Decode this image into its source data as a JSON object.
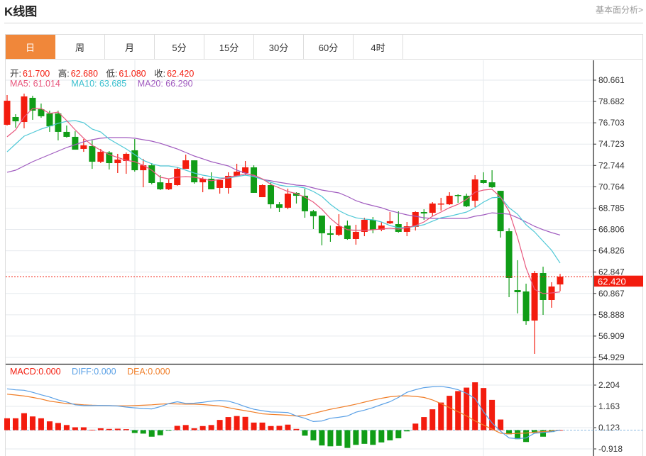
{
  "header": {
    "title": "K线图",
    "link": "基本面分析>"
  },
  "tabs": [
    {
      "label": "日",
      "active": true
    },
    {
      "label": "周",
      "active": false
    },
    {
      "label": "月",
      "active": false
    },
    {
      "label": "5分",
      "active": false
    },
    {
      "label": "15分",
      "active": false
    },
    {
      "label": "30分",
      "active": false
    },
    {
      "label": "60分",
      "active": false
    },
    {
      "label": "4时",
      "active": false
    }
  ],
  "ohlc_legend": {
    "open_label": "开:",
    "open": "61.700",
    "high_label": "高:",
    "high": "62.680",
    "low_label": "低:",
    "low": "61.080",
    "close_label": "收:",
    "close": "62.420"
  },
  "ma_legend": {
    "ma5": "MA5: 61.014",
    "ma10": "MA10: 63.685",
    "ma20": "MA20: 66.290"
  },
  "macd_legend": {
    "macd": "MACD:0.000",
    "diff": "DIFF:0.000",
    "dea": "DEA:0.000"
  },
  "colors": {
    "up": "#f31c0e",
    "down": "#109d17",
    "ma5": "#e8577d",
    "ma10": "#4fc8d6",
    "ma20": "#a05bbf",
    "diff": "#5aa0e6",
    "dea": "#f07e28",
    "active_tab": "#f0873a"
  },
  "chart_data": [
    {
      "type": "candlestick",
      "price_ticks": [
        "80.661",
        "78.682",
        "76.703",
        "74.723",
        "72.744",
        "70.764",
        "68.785",
        "66.806",
        "64.826",
        "62.847",
        "60.867",
        "58.888",
        "56.909",
        "54.929"
      ],
      "ylim": [
        54.929,
        80.661
      ],
      "last_price": "62.420",
      "grid": true,
      "ohlc": [
        [
          76.52,
          79.28,
          76.45,
          78.75
        ],
        [
          77.24,
          77.5,
          76.25,
          76.84
        ],
        [
          76.78,
          79.41,
          76.19,
          79.15
        ],
        [
          79.02,
          79.21,
          76.98,
          77.83
        ],
        [
          77.96,
          78.49,
          77.17,
          77.31
        ],
        [
          77.57,
          77.83,
          75.86,
          76.38
        ],
        [
          77.57,
          77.83,
          75.07,
          75.86
        ],
        [
          75.86,
          76.45,
          75.33,
          75.4
        ],
        [
          75.4,
          75.92,
          74.21,
          74.21
        ],
        [
          74.28,
          75.2,
          74.01,
          74.61
        ],
        [
          74.54,
          75.07,
          72.43,
          73.09
        ],
        [
          73.09,
          74.28,
          72.96,
          74.01
        ],
        [
          73.95,
          74.08,
          72.37,
          72.96
        ],
        [
          72.96,
          73.82,
          72.04,
          73.29
        ],
        [
          73.16,
          73.95,
          71.97,
          73.82
        ],
        [
          74.15,
          75.2,
          72.17,
          72.3
        ],
        [
          72.3,
          73.36,
          70.72,
          72.76
        ],
        [
          72.76,
          72.96,
          70.99,
          71.12
        ],
        [
          71.18,
          71.84,
          70.46,
          70.53
        ],
        [
          70.53,
          71.45,
          70.46,
          71.12
        ],
        [
          70.92,
          72.57,
          70.86,
          72.43
        ],
        [
          72.43,
          73.75,
          72.43,
          73.22
        ],
        [
          73.22,
          73.22,
          71.05,
          71.18
        ],
        [
          71.18,
          71.65,
          70.26,
          71.51
        ],
        [
          71.51,
          72.11,
          70.53,
          70.53
        ],
        [
          70.66,
          71.38,
          70.13,
          71.38
        ],
        [
          70.66,
          72.11,
          70.13,
          71.78
        ],
        [
          71.78,
          72.9,
          71.78,
          72.17
        ],
        [
          72.04,
          73.16,
          71.84,
          72.57
        ],
        [
          72.57,
          72.76,
          70.2,
          70.2
        ],
        [
          69.8,
          70.99,
          69.8,
          70.92
        ],
        [
          70.92,
          71.18,
          68.75,
          69.14
        ],
        [
          69.14,
          69.34,
          68.42,
          68.82
        ],
        [
          68.82,
          70.59,
          68.68,
          70.13
        ],
        [
          70.2,
          70.26,
          69.21,
          69.93
        ],
        [
          69.93,
          70.59,
          67.89,
          68.49
        ],
        [
          68.49,
          68.62,
          66.84,
          68.03
        ],
        [
          68.09,
          68.09,
          65.33,
          66.45
        ],
        [
          66.45,
          67.17,
          65.66,
          66.31
        ],
        [
          66.31,
          68.22,
          66.18,
          67.1
        ],
        [
          67.17,
          67.63,
          65.85,
          65.92
        ],
        [
          65.92,
          67.24,
          65.39,
          66.58
        ],
        [
          66.58,
          67.89,
          66.18,
          67.7
        ],
        [
          67.7,
          67.96,
          66.45,
          66.78
        ],
        [
          66.78,
          67.5,
          66.64,
          67.17
        ],
        [
          67.37,
          68.42,
          67.3,
          67.57
        ],
        [
          67.3,
          68.49,
          66.51,
          66.58
        ],
        [
          66.58,
          67.5,
          66.18,
          67.1
        ],
        [
          67.04,
          68.49,
          66.71,
          68.42
        ],
        [
          68.42,
          68.68,
          67.7,
          68.29
        ],
        [
          68.35,
          69.34,
          68.03,
          69.21
        ],
        [
          69.14,
          69.74,
          68.55,
          69.21
        ],
        [
          69.14,
          70.26,
          69.08,
          69.93
        ],
        [
          70.0,
          70.07,
          69.28,
          69.93
        ],
        [
          69.93,
          70.13,
          68.88,
          68.95
        ],
        [
          69.47,
          71.84,
          68.88,
          71.45
        ],
        [
          71.38,
          72.11,
          71.05,
          71.12
        ],
        [
          71.18,
          72.3,
          70.66,
          70.72
        ],
        [
          70.39,
          70.39,
          66.05,
          66.64
        ],
        [
          66.64,
          66.91,
          60.52,
          62.3
        ],
        [
          61.18,
          63.95,
          59.01,
          60.98
        ],
        [
          61.05,
          61.77,
          57.96,
          58.29
        ],
        [
          58.35,
          62.96,
          55.26,
          62.76
        ],
        [
          62.76,
          63.35,
          58.88,
          60.26
        ],
        [
          60.26,
          61.91,
          59.54,
          61.51
        ],
        [
          61.7,
          62.68,
          61.08,
          62.42
        ]
      ],
      "ma5": [
        75.4,
        76.05,
        77.24,
        78.03,
        78.03,
        77.57,
        77.7,
        76.91,
        76.05,
        75.27,
        74.61,
        74.15,
        73.75,
        73.49,
        73.22,
        73.09,
        72.76,
        72.3,
        71.65,
        71.51,
        71.65,
        71.71,
        71.65,
        71.51,
        71.32,
        71.45,
        71.65,
        71.78,
        71.97,
        71.84,
        71.51,
        70.99,
        70.66,
        70.33,
        70.13,
        69.8,
        69.34,
        68.68,
        67.83,
        67.17,
        66.78,
        66.71,
        66.71,
        66.78,
        66.84,
        66.91,
        66.84,
        66.97,
        67.17,
        67.5,
        68.03,
        68.42,
        68.82,
        69.14,
        69.6,
        70.26,
        70.46,
        70.53,
        69.8,
        68.49,
        66.05,
        63.22,
        61.25,
        60.85,
        60.92,
        61.01
      ],
      "ma10": [
        74.01,
        74.74,
        75.46,
        75.79,
        76.12,
        76.38,
        76.65,
        76.84,
        76.91,
        76.71,
        76.12,
        75.86,
        75.2,
        74.74,
        74.28,
        73.75,
        73.22,
        72.9,
        72.7,
        72.7,
        72.57,
        72.3,
        72.04,
        71.84,
        71.71,
        71.58,
        71.58,
        71.71,
        71.84,
        71.71,
        71.45,
        71.18,
        70.92,
        70.79,
        70.79,
        70.66,
        70.33,
        69.87,
        69.14,
        68.55,
        68.16,
        67.89,
        67.76,
        67.7,
        67.5,
        67.17,
        66.97,
        66.97,
        67.1,
        67.24,
        67.57,
        67.89,
        68.03,
        68.22,
        68.42,
        68.82,
        69.34,
        69.74,
        69.8,
        68.82,
        68.22,
        67.24,
        66.58,
        65.72,
        64.87,
        63.69
      ],
      "ma20": [
        72.11,
        72.3,
        72.7,
        73.09,
        73.42,
        73.75,
        74.08,
        74.41,
        74.67,
        74.94,
        75.13,
        75.27,
        75.33,
        75.33,
        75.33,
        75.27,
        75.13,
        75.0,
        74.8,
        74.54,
        74.28,
        73.95,
        73.62,
        73.36,
        73.09,
        72.9,
        72.7,
        72.3,
        72.04,
        71.78,
        71.45,
        71.32,
        71.18,
        71.05,
        70.92,
        70.86,
        70.66,
        70.46,
        70.33,
        70.2,
        69.87,
        69.47,
        69.21,
        69.01,
        68.82,
        68.55,
        68.35,
        68.16,
        68.03,
        67.89,
        67.83,
        67.83,
        67.83,
        67.83,
        67.83,
        68.03,
        68.16,
        68.35,
        68.29,
        68.22,
        67.89,
        67.5,
        67.1,
        66.78,
        66.51,
        66.29
      ]
    },
    {
      "type": "bar+line",
      "macd_ticks": [
        "2.204",
        "1.163",
        "0.123",
        "-0.918"
      ],
      "ylim": [
        -0.918,
        2.204
      ],
      "macd": [
        0.58,
        0.58,
        0.83,
        0.67,
        0.58,
        0.43,
        0.35,
        0.25,
        0.14,
        0.14,
        0.02,
        0.09,
        0.06,
        0.07,
        0.05,
        -0.14,
        -0.17,
        -0.32,
        -0.25,
        -0.03,
        0.21,
        0.25,
        0.09,
        0.2,
        0.25,
        0.5,
        0.64,
        0.69,
        0.65,
        0.37,
        0.37,
        0.2,
        0.21,
        0.27,
        0.06,
        -0.27,
        -0.5,
        -0.75,
        -0.79,
        -0.77,
        -0.87,
        -0.72,
        -0.67,
        -0.72,
        -0.6,
        -0.5,
        -0.4,
        -0.06,
        0.32,
        0.64,
        1.02,
        1.35,
        1.68,
        1.91,
        2.08,
        2.34,
        2.06,
        1.48,
        0.52,
        -0.2,
        -0.44,
        -0.58,
        -0.14,
        -0.32,
        -0.09,
        0.0
      ],
      "diff": [
        2.02,
        1.97,
        1.95,
        1.85,
        1.73,
        1.62,
        1.48,
        1.38,
        1.24,
        1.2,
        1.2,
        1.21,
        1.2,
        1.18,
        1.13,
        1.09,
        1.06,
        1.04,
        1.15,
        1.3,
        1.39,
        1.31,
        1.32,
        1.36,
        1.42,
        1.45,
        1.42,
        1.3,
        1.15,
        1.02,
        0.95,
        0.89,
        0.88,
        0.86,
        0.7,
        0.58,
        0.42,
        0.45,
        0.58,
        0.63,
        0.69,
        0.88,
        0.98,
        1.1,
        1.25,
        1.39,
        1.6,
        1.85,
        1.98,
        2.08,
        2.12,
        2.14,
        2.08,
        1.98,
        1.8,
        1.55,
        0.9,
        0.35,
        -0.05,
        -0.38,
        -0.42,
        -0.38,
        -0.15,
        -0.12,
        -0.08,
        0.0
      ],
      "dea": [
        1.76,
        1.72,
        1.67,
        1.6,
        1.52,
        1.42,
        1.36,
        1.3,
        1.27,
        1.24,
        1.22,
        1.21,
        1.2,
        1.19,
        1.19,
        1.2,
        1.22,
        1.24,
        1.27,
        1.29,
        1.28,
        1.27,
        1.27,
        1.25,
        1.22,
        1.18,
        1.1,
        1.02,
        0.95,
        0.88,
        0.8,
        0.77,
        0.75,
        0.73,
        0.69,
        0.72,
        0.82,
        0.92,
        1.02,
        1.1,
        1.18,
        1.27,
        1.37,
        1.47,
        1.56,
        1.63,
        1.67,
        1.68,
        1.65,
        1.6,
        1.48,
        1.3,
        1.1,
        0.9,
        0.7,
        0.45,
        0.25,
        0.05,
        -0.15,
        -0.18,
        -0.16,
        -0.14,
        -0.1,
        -0.07,
        -0.04,
        0.0
      ]
    }
  ]
}
